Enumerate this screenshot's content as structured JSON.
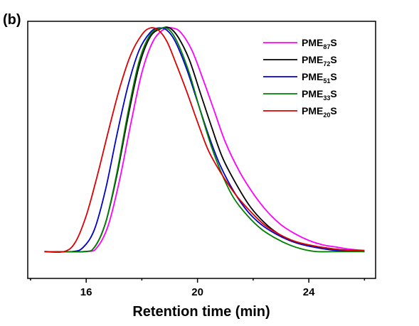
{
  "chart_data": {
    "type": "line",
    "panel_label": "(b)",
    "title": "",
    "xlabel": "Retention time (min)",
    "ylabel": "",
    "xlim": [
      13.9,
      26.4
    ],
    "ylim": [
      -0.12,
      1.03
    ],
    "x_ticks": [
      16,
      20,
      24
    ],
    "y_ticks_visible": false,
    "grid": false,
    "legend_position": "top-right",
    "series": [
      {
        "name_main": "PME",
        "name_sub": "87",
        "name_end": "S",
        "color": "#ff00ff",
        "x": [
          14.5,
          16.0,
          16.4,
          16.8,
          17.2,
          17.6,
          18.0,
          18.4,
          18.8,
          19.1,
          19.4,
          19.8,
          20.2,
          20.6,
          21.0,
          21.5,
          22.0,
          22.5,
          23.0,
          23.5,
          24.0,
          24.5,
          25.0,
          25.5,
          26.0
        ],
        "y": [
          0.0,
          0.0,
          0.02,
          0.12,
          0.32,
          0.57,
          0.8,
          0.94,
          0.995,
          1.0,
          0.98,
          0.9,
          0.77,
          0.63,
          0.49,
          0.36,
          0.26,
          0.18,
          0.12,
          0.08,
          0.05,
          0.03,
          0.02,
          0.01,
          0.005
        ]
      },
      {
        "name_main": "PME",
        "name_sub": "72",
        "name_end": "S",
        "color": "#000000",
        "x": [
          14.5,
          15.9,
          16.3,
          16.7,
          17.1,
          17.5,
          17.9,
          18.3,
          18.7,
          19.0,
          19.3,
          19.7,
          20.1,
          20.5,
          20.9,
          21.4,
          21.9,
          22.4,
          22.9,
          23.4,
          23.9,
          24.4,
          25.0,
          25.5,
          26.0
        ],
        "y": [
          0.0,
          0.0,
          0.02,
          0.13,
          0.34,
          0.6,
          0.83,
          0.96,
          0.998,
          1.0,
          0.96,
          0.86,
          0.71,
          0.56,
          0.42,
          0.3,
          0.2,
          0.13,
          0.08,
          0.05,
          0.03,
          0.02,
          0.01,
          0.005,
          0.0
        ]
      },
      {
        "name_main": "PME",
        "name_sub": "51",
        "name_end": "S",
        "color": "#0000cc",
        "x": [
          14.5,
          15.5,
          15.9,
          16.3,
          16.7,
          17.1,
          17.5,
          17.9,
          18.3,
          18.6,
          18.9,
          19.2,
          19.6,
          20.0,
          20.4,
          20.8,
          21.3,
          21.8,
          22.3,
          22.8,
          23.3,
          23.8,
          24.4,
          25.0,
          26.0
        ],
        "y": [
          0.0,
          0.0,
          0.02,
          0.1,
          0.28,
          0.52,
          0.74,
          0.9,
          0.98,
          1.0,
          0.99,
          0.94,
          0.82,
          0.67,
          0.52,
          0.39,
          0.27,
          0.18,
          0.12,
          0.08,
          0.05,
          0.03,
          0.015,
          0.005,
          0.0
        ]
      },
      {
        "name_main": "PME",
        "name_sub": "33",
        "name_end": "S",
        "color": "#008000",
        "x": [
          14.5,
          15.9,
          16.3,
          16.7,
          17.1,
          17.5,
          17.9,
          18.3,
          18.7,
          19.0,
          19.3,
          19.7,
          20.1,
          20.5,
          20.9,
          21.3,
          21.8,
          22.3,
          22.8,
          23.3,
          23.8,
          24.3,
          25.0,
          25.5,
          26.0
        ],
        "y": [
          0.0,
          0.0,
          0.02,
          0.13,
          0.35,
          0.62,
          0.85,
          0.97,
          1.0,
          0.99,
          0.93,
          0.8,
          0.63,
          0.47,
          0.34,
          0.24,
          0.16,
          0.1,
          0.06,
          0.03,
          0.01,
          0.0,
          0.0,
          0.0,
          0.0
        ]
      },
      {
        "name_main": "PME",
        "name_sub": "20",
        "name_end": "S",
        "color": "#dd0000",
        "x": [
          14.5,
          15.2,
          15.6,
          16.0,
          16.4,
          16.8,
          17.2,
          17.6,
          18.0,
          18.3,
          18.6,
          18.9,
          19.2,
          19.6,
          20.0,
          20.4,
          20.9,
          21.4,
          21.9,
          22.4,
          22.9,
          23.4,
          24.0,
          25.0,
          26.0
        ],
        "y": [
          0.0,
          0.0,
          0.04,
          0.16,
          0.34,
          0.54,
          0.73,
          0.88,
          0.97,
          1.0,
          0.99,
          0.94,
          0.85,
          0.72,
          0.58,
          0.45,
          0.34,
          0.25,
          0.18,
          0.12,
          0.08,
          0.05,
          0.03,
          0.01,
          0.005
        ]
      }
    ]
  }
}
